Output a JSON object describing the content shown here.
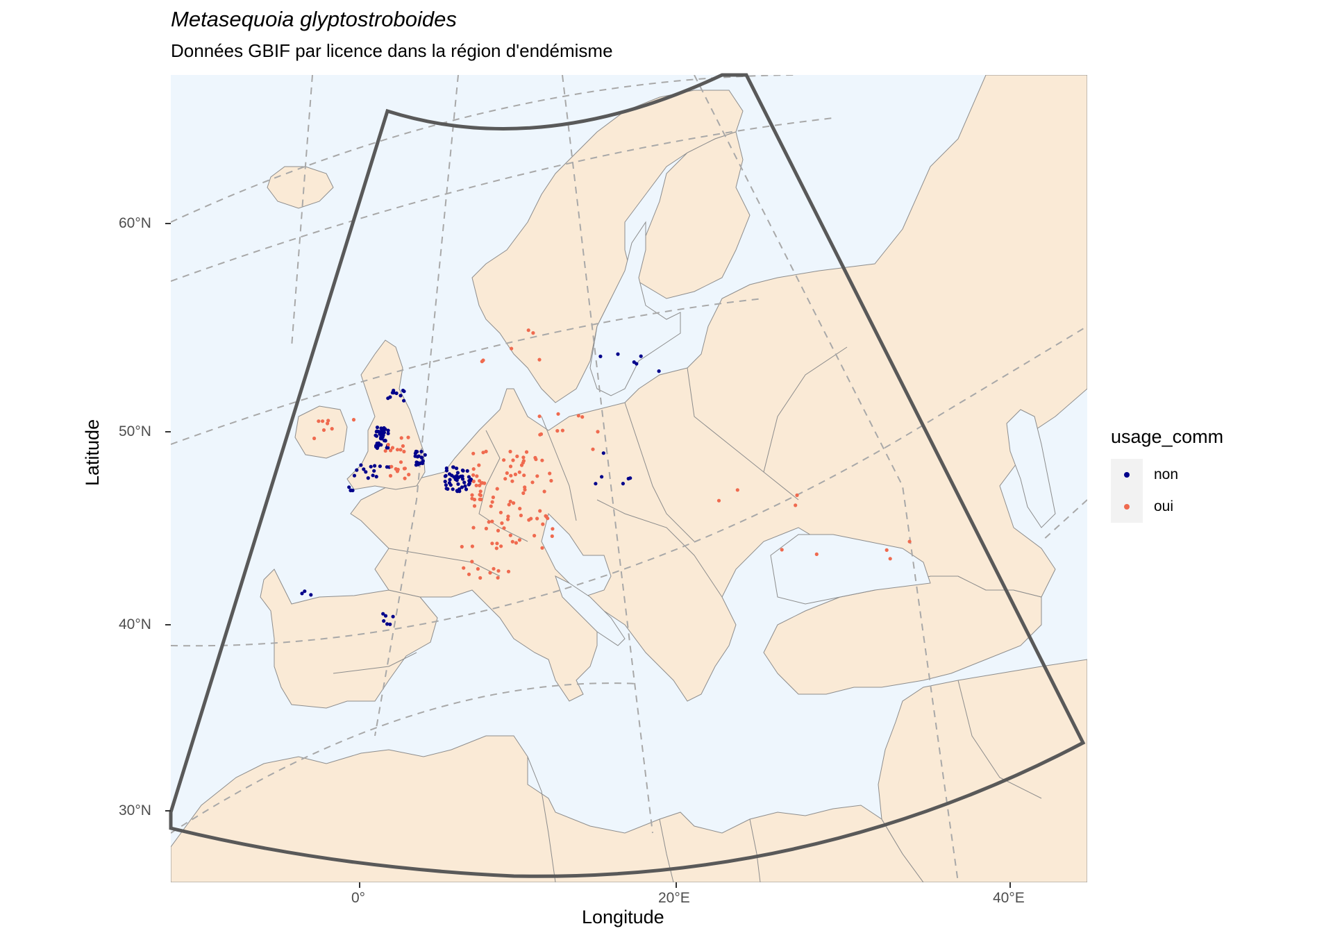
{
  "title": "Metasequoia glyptostroboides",
  "subtitle": "Données GBIF par licence dans la région d'endémisme",
  "axes": {
    "x_label": "Longitude",
    "y_label": "Latitude",
    "x_ticks": [
      "0°",
      "20°E",
      "40°E"
    ],
    "y_ticks": [
      "60°N",
      "50°N",
      "40°N",
      "30°N"
    ]
  },
  "legend": {
    "title": "usage_comm",
    "items": [
      {
        "label": "non",
        "color": "#00008b"
      },
      {
        "label": "oui",
        "color": "#ef6a4f"
      }
    ]
  },
  "colors": {
    "sea": "#eef6fd",
    "land": "#faead6",
    "border": "#8c8c8c",
    "graticule": "#a8a8a8",
    "region_outline": "#595959"
  }
}
